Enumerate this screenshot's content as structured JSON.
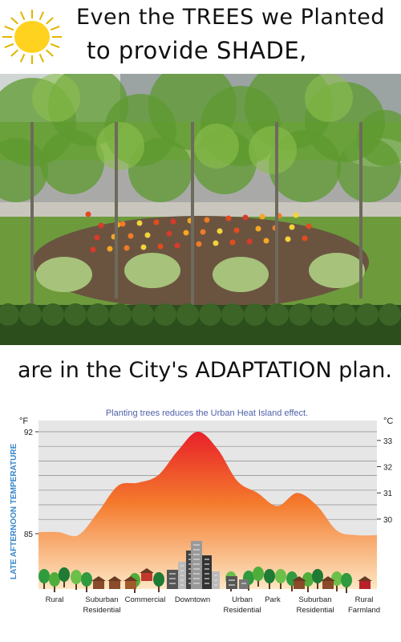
{
  "header": {
    "line1": "Even the TREES we Planted",
    "line2": "to provide SHADE,",
    "line3": "are in the City's ADAPTATION plan."
  },
  "icons": {
    "sun": "sun-icon",
    "photo": "tree-garden-photo"
  },
  "colors": {
    "sun": "#ffd21f",
    "curve_top": "#e8202a",
    "curve_bottom": "#fde7c4",
    "tree_green": "#2f9a3e",
    "chart_bg": "#e6e6e6",
    "title_color": "#5060a8",
    "axis_label_color": "#3a86c8"
  },
  "chart_data": {
    "type": "area",
    "title": "Planting trees reduces the Urban Heat Island effect.",
    "ylabel": "LATE AFTERNOON TEMPERATURE",
    "left_unit": "°F",
    "right_unit": "°C",
    "left_ticks": [
      "92",
      "85"
    ],
    "right_ticks": [
      "33",
      "32",
      "31",
      "30"
    ],
    "categories": [
      {
        "line1": "Rural",
        "line2": ""
      },
      {
        "line1": "Suburban",
        "line2": "Residential"
      },
      {
        "line1": "Commercial",
        "line2": ""
      },
      {
        "line1": "Downtown",
        "line2": ""
      },
      {
        "line1": "Urban",
        "line2": "Residential"
      },
      {
        "line1": "Park",
        "line2": ""
      },
      {
        "line1": "Suburban",
        "line2": "Residential"
      },
      {
        "line1": "Rural",
        "line2": "Farmland"
      }
    ],
    "ylim_f": [
      83,
      92.5
    ],
    "profile_f": [
      85.1,
      85.1,
      84.9,
      86.5,
      88.3,
      88.5,
      89.0,
      90.7,
      92.0,
      90.8,
      88.6,
      87.8,
      86.9,
      87.8,
      86.9,
      85.2,
      84.9,
      84.9
    ],
    "grid": true
  }
}
